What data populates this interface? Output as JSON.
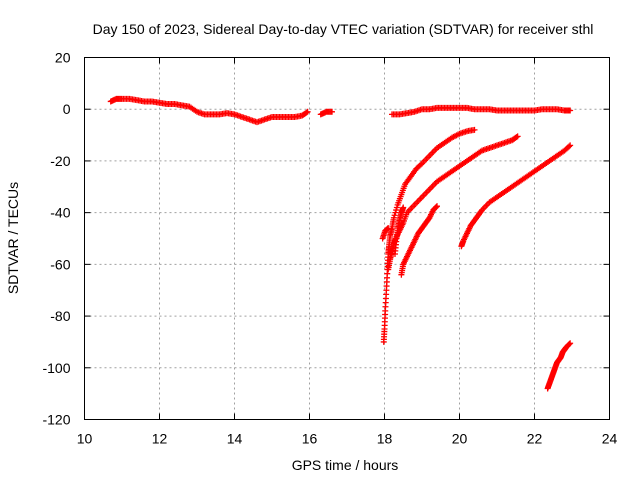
{
  "chart_data": {
    "type": "scatter",
    "title": "Day 150 of 2023, Sidereal Day-to-day VTEC variation (SDTVAR) for receiver sthl",
    "xlabel": "GPS time / hours",
    "ylabel": "SDTVAR / TECUs",
    "xlim": [
      10,
      24
    ],
    "ylim": [
      -120,
      20
    ],
    "xticks": [
      10,
      12,
      14,
      16,
      18,
      20,
      22,
      24
    ],
    "yticks": [
      20,
      0,
      -20,
      -40,
      -60,
      -80,
      -100,
      -120
    ],
    "grid": true,
    "marker": "+",
    "color": "#ff0000",
    "series": [
      {
        "points": [
          [
            10.7,
            3
          ],
          [
            10.85,
            4
          ],
          [
            11.0,
            4
          ],
          [
            11.2,
            4
          ],
          [
            11.4,
            3.5
          ],
          [
            11.6,
            3
          ],
          [
            11.8,
            3
          ],
          [
            12.0,
            2.5
          ],
          [
            12.2,
            2
          ],
          [
            12.4,
            2
          ],
          [
            12.6,
            1.5
          ],
          [
            12.8,
            1
          ],
          [
            13.0,
            -1
          ],
          [
            13.2,
            -2
          ],
          [
            13.4,
            -2
          ],
          [
            13.6,
            -2
          ],
          [
            13.8,
            -1.5
          ],
          [
            14.0,
            -2
          ],
          [
            14.2,
            -3
          ],
          [
            14.4,
            -4
          ],
          [
            14.6,
            -5
          ],
          [
            14.8,
            -4
          ],
          [
            15.0,
            -3
          ],
          [
            15.2,
            -3
          ],
          [
            15.4,
            -3
          ],
          [
            15.6,
            -3
          ],
          [
            15.8,
            -2.5
          ],
          [
            15.95,
            -1
          ]
        ]
      },
      {
        "points": [
          [
            16.3,
            -2
          ],
          [
            16.45,
            -1
          ],
          [
            16.6,
            -1
          ]
        ]
      },
      {
        "points": [
          [
            18.2,
            -2
          ],
          [
            18.4,
            -2
          ],
          [
            18.6,
            -1.5
          ],
          [
            18.8,
            -1
          ],
          [
            19.0,
            0
          ],
          [
            19.2,
            0
          ],
          [
            19.4,
            0.5
          ],
          [
            19.6,
            0.5
          ],
          [
            19.8,
            0.5
          ],
          [
            20.0,
            0.5
          ],
          [
            20.2,
            0.5
          ],
          [
            20.4,
            0
          ],
          [
            20.6,
            0
          ],
          [
            20.8,
            0
          ],
          [
            21.0,
            -0.5
          ],
          [
            21.2,
            -0.5
          ],
          [
            21.4,
            -0.5
          ],
          [
            21.6,
            -0.5
          ],
          [
            21.8,
            -0.5
          ],
          [
            22.0,
            -0.5
          ],
          [
            22.2,
            0
          ],
          [
            22.4,
            0
          ],
          [
            22.6,
            0
          ],
          [
            22.8,
            -0.5
          ],
          [
            22.95,
            -0.5
          ]
        ]
      },
      {
        "points": [
          [
            17.98,
            -90
          ],
          [
            18.0,
            -85
          ],
          [
            18.02,
            -78
          ],
          [
            18.05,
            -70
          ],
          [
            18.08,
            -62
          ],
          [
            18.1,
            -56
          ],
          [
            18.12,
            -53
          ],
          [
            18.15,
            -49
          ],
          [
            18.2,
            -46
          ],
          [
            18.25,
            -42
          ],
          [
            18.35,
            -37
          ],
          [
            18.45,
            -33
          ],
          [
            18.55,
            -29
          ],
          [
            18.7,
            -26
          ],
          [
            18.85,
            -23
          ],
          [
            19.0,
            -21
          ],
          [
            19.2,
            -18
          ],
          [
            19.4,
            -15
          ],
          [
            19.6,
            -13
          ],
          [
            19.8,
            -11
          ],
          [
            20.0,
            -9.5
          ],
          [
            20.2,
            -8.5
          ],
          [
            20.4,
            -8
          ]
        ]
      },
      {
        "points": [
          [
            17.95,
            -50
          ],
          [
            18.02,
            -47
          ],
          [
            18.1,
            -46
          ]
        ]
      },
      {
        "points": [
          [
            18.1,
            -62
          ],
          [
            18.15,
            -58
          ],
          [
            18.2,
            -55
          ],
          [
            18.25,
            -52
          ],
          [
            18.3,
            -50
          ],
          [
            18.4,
            -47
          ],
          [
            18.5,
            -44
          ],
          [
            18.6,
            -40
          ],
          [
            18.8,
            -37
          ],
          [
            19.0,
            -34
          ],
          [
            19.2,
            -31
          ],
          [
            19.4,
            -28
          ],
          [
            19.6,
            -26
          ],
          [
            19.8,
            -24
          ],
          [
            20.0,
            -22
          ],
          [
            20.2,
            -20
          ],
          [
            20.4,
            -18
          ],
          [
            20.6,
            -16
          ],
          [
            20.8,
            -15
          ],
          [
            21.0,
            -14
          ],
          [
            21.2,
            -13
          ],
          [
            21.4,
            -12
          ],
          [
            21.55,
            -10.5
          ]
        ]
      },
      {
        "points": [
          [
            18.28,
            -56
          ],
          [
            18.32,
            -50
          ],
          [
            18.36,
            -46
          ],
          [
            18.4,
            -43
          ],
          [
            18.45,
            -40
          ],
          [
            18.5,
            -38
          ]
        ]
      },
      {
        "points": [
          [
            18.45,
            -64
          ],
          [
            18.5,
            -60
          ],
          [
            18.6,
            -57
          ],
          [
            18.7,
            -54
          ],
          [
            18.8,
            -51
          ],
          [
            18.9,
            -48
          ],
          [
            19.0,
            -46
          ],
          [
            19.1,
            -44
          ],
          [
            19.2,
            -42
          ],
          [
            19.3,
            -39
          ],
          [
            19.4,
            -37.5
          ]
        ]
      },
      {
        "points": [
          [
            20.05,
            -53
          ],
          [
            20.1,
            -51
          ],
          [
            20.2,
            -48
          ],
          [
            20.3,
            -45
          ],
          [
            20.4,
            -43
          ],
          [
            20.5,
            -41
          ],
          [
            20.6,
            -39
          ],
          [
            20.8,
            -36
          ],
          [
            21.0,
            -34
          ],
          [
            21.2,
            -32
          ],
          [
            21.4,
            -30
          ],
          [
            21.6,
            -28
          ],
          [
            21.8,
            -26
          ],
          [
            22.0,
            -24
          ],
          [
            22.2,
            -22
          ],
          [
            22.4,
            -20
          ],
          [
            22.6,
            -18
          ],
          [
            22.8,
            -16
          ],
          [
            22.95,
            -14
          ]
        ]
      },
      {
        "points": [
          [
            22.35,
            -108
          ],
          [
            22.4,
            -106
          ],
          [
            22.45,
            -104
          ],
          [
            22.5,
            -102
          ],
          [
            22.55,
            -100
          ],
          [
            22.6,
            -98
          ],
          [
            22.65,
            -97
          ],
          [
            22.7,
            -96
          ],
          [
            22.75,
            -94
          ],
          [
            22.8,
            -93
          ],
          [
            22.85,
            -92
          ],
          [
            22.95,
            -90.5
          ]
        ]
      }
    ]
  }
}
